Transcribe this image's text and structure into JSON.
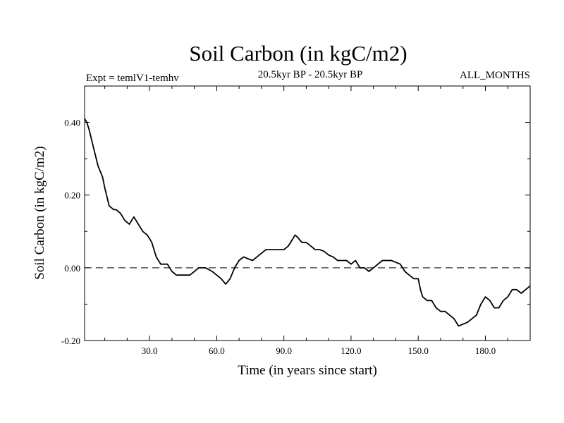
{
  "chart_data": {
    "type": "line",
    "title": "Soil Carbon (in kgC/m2)",
    "subtitle_left": "Expt = temlV1-temhv",
    "subtitle_center": "20.5kyr BP - 20.5kyr BP",
    "subtitle_right": "ALL_MONTHS",
    "xlabel": "Time (in years since start)",
    "ylabel": "Soil Carbon (in kgC/m2)",
    "xlim": [
      1,
      200
    ],
    "ylim": [
      -0.2,
      0.5
    ],
    "x_ticks": [
      30,
      60,
      90,
      120,
      150,
      180
    ],
    "x_tick_labels": [
      "30.0",
      "60.0",
      "90.0",
      "120.0",
      "150.0",
      "180.0"
    ],
    "y_ticks": [
      -0.2,
      0,
      0.2,
      0.4
    ],
    "y_tick_labels": [
      "-0.20",
      "0.00",
      "0.20",
      "0.40"
    ],
    "reference_line": {
      "y": 0,
      "style": "dashed"
    },
    "series": [
      {
        "x": [
          1,
          2,
          3,
          5,
          7,
          9,
          10,
          12,
          14,
          15,
          17,
          19,
          21,
          23,
          25,
          27,
          29,
          31,
          33,
          35,
          36,
          38,
          40,
          42,
          45,
          48,
          52,
          55,
          58,
          60,
          62,
          64,
          66,
          68,
          70,
          72,
          74,
          76,
          78,
          80,
          82,
          85,
          87,
          90,
          92,
          94,
          95,
          96,
          98,
          100,
          102,
          104,
          106,
          108,
          110,
          112,
          114,
          116,
          118,
          120,
          122,
          124,
          126,
          128,
          130,
          132,
          134,
          136,
          138,
          140,
          142,
          144,
          146,
          148,
          150,
          151,
          152,
          154,
          156,
          158,
          160,
          162,
          164,
          166,
          168,
          170,
          172,
          174,
          176,
          178,
          180,
          182,
          184,
          186,
          188,
          190,
          192,
          194,
          196,
          198,
          200
        ],
        "y": [
          0.41,
          0.4,
          0.38,
          0.33,
          0.28,
          0.25,
          0.22,
          0.17,
          0.16,
          0.16,
          0.15,
          0.13,
          0.12,
          0.14,
          0.12,
          0.1,
          0.09,
          0.07,
          0.03,
          0.01,
          0.01,
          0.01,
          -0.01,
          -0.02,
          -0.02,
          -0.02,
          0.0,
          0.0,
          -0.01,
          -0.02,
          -0.03,
          -0.045,
          -0.03,
          0.0,
          0.02,
          0.03,
          0.025,
          0.02,
          0.03,
          0.04,
          0.05,
          0.05,
          0.05,
          0.05,
          0.06,
          0.08,
          0.09,
          0.085,
          0.07,
          0.07,
          0.06,
          0.05,
          0.05,
          0.045,
          0.035,
          0.03,
          0.02,
          0.02,
          0.02,
          0.01,
          0.02,
          0.0,
          0.0,
          -0.01,
          0.0,
          0.01,
          0.02,
          0.02,
          0.02,
          0.015,
          0.01,
          -0.01,
          -0.02,
          -0.03,
          -0.03,
          -0.06,
          -0.08,
          -0.09,
          -0.09,
          -0.11,
          -0.12,
          -0.12,
          -0.13,
          -0.14,
          -0.16,
          -0.155,
          -0.15,
          -0.14,
          -0.13,
          -0.1,
          -0.08,
          -0.09,
          -0.11,
          -0.11,
          -0.09,
          -0.08,
          -0.06,
          -0.06,
          -0.07,
          -0.06,
          -0.05
        ]
      }
    ]
  }
}
